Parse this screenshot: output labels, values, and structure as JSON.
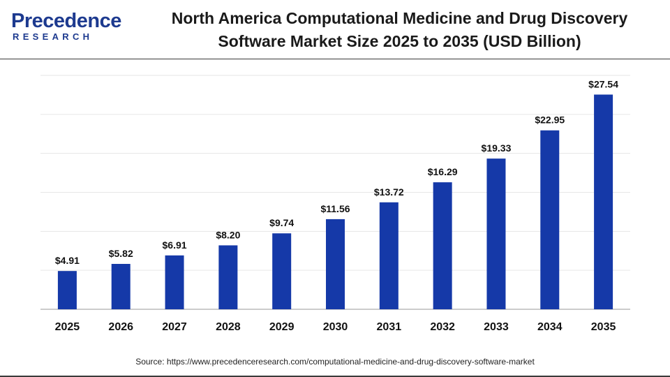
{
  "logo": {
    "word": "Precedence",
    "sub": "RESEARCH"
  },
  "title_line1": "North America Computational Medicine and Drug Discovery",
  "title_line2": "Software Market Size 2025 to 2035 (USD Billion)",
  "source": "Source: https://www.precedenceresearch.com/computational-medicine-and-drug-discovery-software-market",
  "colors": {
    "bar": "#1539a8",
    "grid": "#e6e6e6",
    "axis": "#9a9a9a",
    "brand": "#1d3a8f"
  },
  "chart_data": {
    "type": "bar",
    "title": "North America Computational Medicine and Drug Discovery Software Market Size 2025 to 2035 (USD Billion)",
    "categories": [
      "2025",
      "2026",
      "2027",
      "2028",
      "2029",
      "2030",
      "2031",
      "2032",
      "2033",
      "2034",
      "2035"
    ],
    "values": [
      4.91,
      5.82,
      6.91,
      8.2,
      9.74,
      11.56,
      13.72,
      16.29,
      19.33,
      22.95,
      27.54
    ],
    "labels": [
      "$4.91",
      "$5.82",
      "$6.91",
      "$8.20",
      "$9.74",
      "$11.56",
      "$13.72",
      "$16.29",
      "$19.33",
      "$22.95",
      "$27.54"
    ],
    "xlabel": "",
    "ylabel": "",
    "ylim": [
      0,
      30
    ],
    "grid": true,
    "legend": "none"
  }
}
